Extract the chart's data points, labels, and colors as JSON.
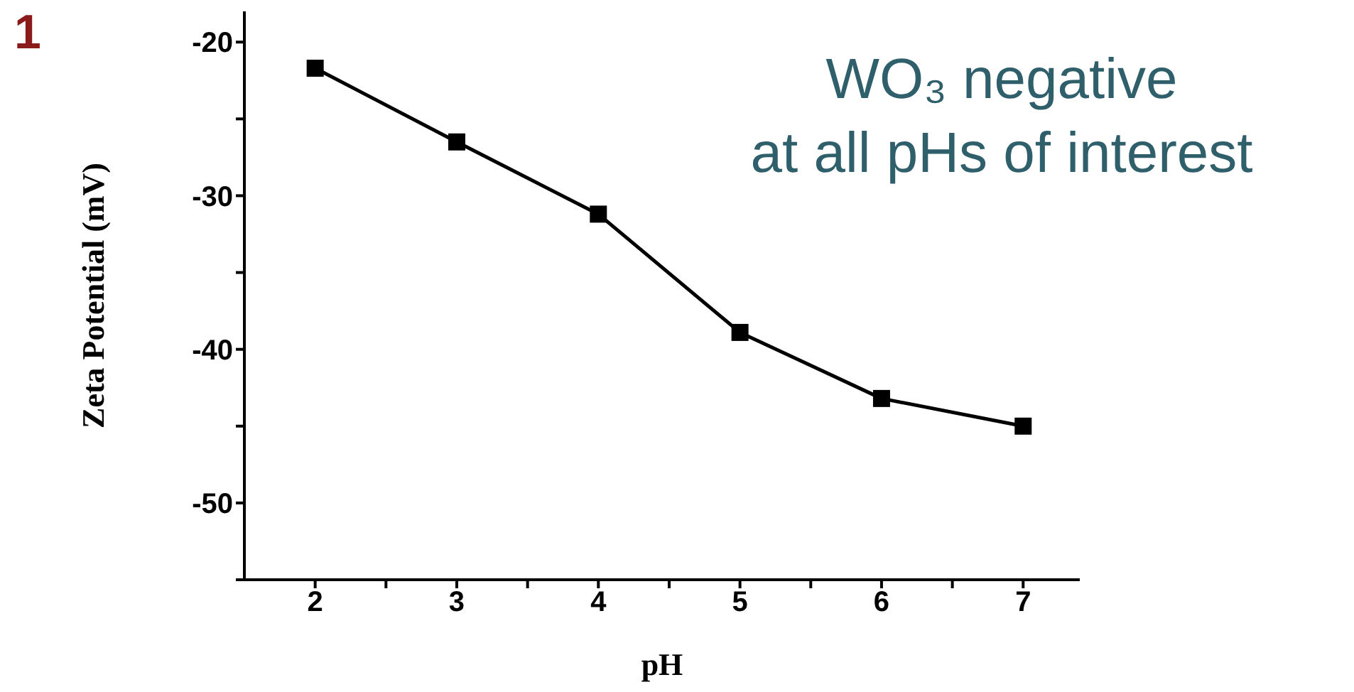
{
  "chart_data": {
    "type": "line",
    "xlabel": "pH",
    "ylabel": "Zeta Potential (mV)",
    "x": [
      2,
      3,
      4,
      5,
      6,
      7
    ],
    "series": [
      {
        "color": "#000000",
        "values": [
          -21.7,
          -26.5,
          -31.2,
          -38.9,
          -43.2,
          -45.0
        ]
      }
    ],
    "xlim": [
      1.5,
      7.4
    ],
    "xticks": [
      2,
      {
        "value": 2.5,
        "label": null
      },
      3,
      {
        "value": 3.5,
        "label": null
      },
      4,
      {
        "value": 4.5,
        "label": null
      },
      5,
      {
        "value": 5.5,
        "label": null
      },
      6,
      {
        "value": 6.5,
        "label": null
      },
      7
    ],
    "ylim": [
      -55,
      -18
    ],
    "yticks": [
      {
        "value": -55,
        "label": null
      },
      -50,
      {
        "value": -45,
        "label": null
      },
      -40,
      {
        "value": -35,
        "label": null
      },
      -30,
      {
        "value": -25,
        "label": null
      },
      -20
    ],
    "grid": false,
    "legend": false,
    "marker": "square",
    "line_style": "solid",
    "annotations": [
      "1",
      "WO₃ negative\nat all pHs of interest"
    ]
  }
}
